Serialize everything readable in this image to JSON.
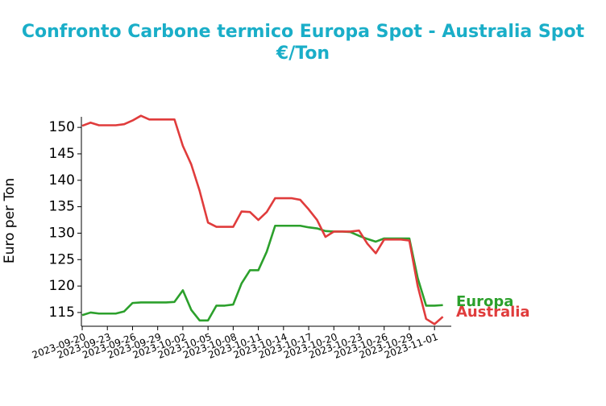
{
  "chart_data": {
    "type": "line",
    "title": "Confronto Carbone termico Europa Spot - Australia Spot",
    "subtitle": "€/Ton",
    "y_label": "Euro per Ton",
    "x": [
      "2023-09-20",
      "2023-09-21",
      "2023-09-22",
      "2023-09-23",
      "2023-09-24",
      "2023-09-25",
      "2023-09-26",
      "2023-09-27",
      "2023-09-28",
      "2023-09-29",
      "2023-09-30",
      "2023-10-01",
      "2023-10-02",
      "2023-10-03",
      "2023-10-04",
      "2023-10-05",
      "2023-10-06",
      "2023-10-07",
      "2023-10-08",
      "2023-10-09",
      "2023-10-10",
      "2023-10-11",
      "2023-10-12",
      "2023-10-13",
      "2023-10-14",
      "2023-10-15",
      "2023-10-16",
      "2023-10-17",
      "2023-10-18",
      "2023-10-19",
      "2023-10-20",
      "2023-10-21",
      "2023-10-22",
      "2023-10-23",
      "2023-10-24",
      "2023-10-25",
      "2023-10-26",
      "2023-10-27",
      "2023-10-28",
      "2023-10-29",
      "2023-10-30",
      "2023-10-31",
      "2023-11-01",
      "2023-11-02"
    ],
    "series": [
      {
        "name": "Europa",
        "color": "#2ca02c",
        "values": [
          114.5,
          115,
          114.8,
          114.8,
          114.8,
          115.2,
          116.8,
          116.9,
          116.9,
          116.9,
          116.9,
          117,
          119.2,
          115.5,
          113.5,
          113.5,
          116.3,
          116.3,
          116.5,
          120.5,
          123,
          123,
          126.5,
          131.4,
          131.4,
          131.4,
          131.4,
          131.1,
          130.9,
          130.4,
          130.3,
          130.3,
          130.2,
          129.5,
          128.9,
          128.4,
          129,
          129,
          129,
          129,
          121.5,
          116.3,
          116.3,
          116.4
        ]
      },
      {
        "name": "Australia",
        "color": "#e03c3c",
        "values": [
          150.3,
          150.9,
          150.4,
          150.4,
          150.4,
          150.6,
          151.3,
          152.2,
          151.5,
          151.5,
          151.5,
          151.5,
          146.5,
          143,
          138,
          132,
          131.2,
          131.2,
          131.2,
          134.1,
          134,
          132.5,
          134,
          136.6,
          136.6,
          136.6,
          136.3,
          134.5,
          132.5,
          129.3,
          130.3,
          130.3,
          130.3,
          130.5,
          128,
          126.2,
          128.8,
          128.8,
          128.8,
          128.6,
          120,
          113.8,
          112.8,
          114.2
        ]
      }
    ],
    "xlim": [
      "2023-09-20",
      "2023-11-03"
    ],
    "xticks": [
      "2023-09-20",
      "2023-09-23",
      "2023-09-26",
      "2023-09-29",
      "2023-10-02",
      "2023-10-05",
      "2023-10-08",
      "2023-10-11",
      "2023-10-14",
      "2023-10-17",
      "2023-10-20",
      "2023-10-23",
      "2023-10-26",
      "2023-10-29",
      "2023-11-01"
    ],
    "ylim": [
      112.4,
      152
    ],
    "yticks": [
      115,
      120,
      125,
      130,
      135,
      140,
      145,
      150
    ]
  }
}
